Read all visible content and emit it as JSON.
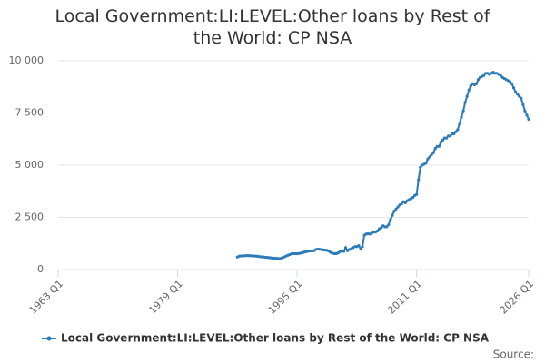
{
  "chart_data": {
    "type": "line",
    "title": "Local Government:LI:LEVEL:Other loans by Rest of the World: CP NSA",
    "x": [
      "1987 Q1",
      "1987 Q2",
      "1987 Q3",
      "1987 Q4",
      "1988 Q1",
      "1988 Q2",
      "1988 Q3",
      "1988 Q4",
      "1989 Q1",
      "1989 Q2",
      "1989 Q3",
      "1989 Q4",
      "1990 Q1",
      "1990 Q2",
      "1990 Q3",
      "1990 Q4",
      "1991 Q1",
      "1991 Q2",
      "1991 Q3",
      "1991 Q4",
      "1992 Q1",
      "1992 Q2",
      "1992 Q3",
      "1992 Q4",
      "1993 Q1",
      "1993 Q2",
      "1993 Q3",
      "1993 Q4",
      "1994 Q1",
      "1994 Q2",
      "1994 Q3",
      "1994 Q4",
      "1995 Q1",
      "1995 Q2",
      "1995 Q3",
      "1995 Q4",
      "1996 Q1",
      "1996 Q2",
      "1996 Q3",
      "1996 Q4",
      "1997 Q1",
      "1997 Q2",
      "1997 Q3",
      "1997 Q4",
      "1998 Q1",
      "1998 Q2",
      "1998 Q3",
      "1998 Q4",
      "1999 Q1",
      "1999 Q2",
      "1999 Q3",
      "1999 Q4",
      "2000 Q1",
      "2000 Q2",
      "2000 Q3",
      "2000 Q4",
      "2001 Q1",
      "2001 Q2",
      "2001 Q3",
      "2001 Q4",
      "2002 Q1",
      "2002 Q2",
      "2002 Q3",
      "2002 Q4",
      "2003 Q1",
      "2003 Q2",
      "2003 Q3",
      "2003 Q4",
      "2004 Q1",
      "2004 Q2",
      "2004 Q3",
      "2004 Q4",
      "2005 Q1",
      "2005 Q2",
      "2005 Q3",
      "2005 Q4",
      "2006 Q1",
      "2006 Q2",
      "2006 Q3",
      "2006 Q4",
      "2007 Q1",
      "2007 Q2",
      "2007 Q3",
      "2007 Q4",
      "2008 Q1",
      "2008 Q2",
      "2008 Q3",
      "2008 Q4",
      "2009 Q1",
      "2009 Q2",
      "2009 Q3",
      "2009 Q4",
      "2010 Q1",
      "2010 Q2",
      "2010 Q3",
      "2010 Q4",
      "2011 Q1",
      "2011 Q2",
      "2011 Q3",
      "2011 Q4",
      "2012 Q1",
      "2012 Q2",
      "2012 Q3",
      "2012 Q4",
      "2013 Q1",
      "2013 Q2",
      "2013 Q3",
      "2013 Q4",
      "2014 Q1",
      "2014 Q2",
      "2014 Q3",
      "2014 Q4",
      "2015 Q1",
      "2015 Q2",
      "2015 Q3",
      "2015 Q4",
      "2016 Q1",
      "2016 Q2",
      "2016 Q3",
      "2016 Q4",
      "2017 Q1",
      "2017 Q2",
      "2017 Q3",
      "2017 Q4",
      "2018 Q1",
      "2018 Q2",
      "2018 Q3",
      "2018 Q4",
      "2019 Q1",
      "2019 Q2",
      "2019 Q3",
      "2019 Q4",
      "2020 Q1",
      "2020 Q2",
      "2020 Q3",
      "2020 Q4",
      "2021 Q1",
      "2021 Q2",
      "2021 Q3",
      "2021 Q4",
      "2022 Q1",
      "2022 Q2",
      "2022 Q3",
      "2022 Q4",
      "2023 Q1",
      "2023 Q2",
      "2023 Q3",
      "2023 Q4",
      "2024 Q1",
      "2024 Q2",
      "2024 Q3",
      "2024 Q4",
      "2025 Q1",
      "2025 Q2",
      "2025 Q3",
      "2025 Q4",
      "2026 Q1"
    ],
    "series": [
      {
        "name": "Local Government:LI:LEVEL:Other loans by Rest of the World: CP NSA",
        "color": "#2b7bb9",
        "values": [
          600,
          640,
          650,
          660,
          660,
          670,
          670,
          660,
          660,
          650,
          640,
          630,
          620,
          610,
          600,
          590,
          580,
          570,
          560,
          550,
          540,
          540,
          530,
          530,
          560,
          600,
          640,
          680,
          720,
          750,
          760,
          760,
          760,
          770,
          790,
          810,
          840,
          860,
          880,
          890,
          890,
          900,
          960,
          980,
          970,
          960,
          940,
          930,
          920,
          880,
          820,
          780,
          760,
          760,
          800,
          860,
          900,
          870,
          1050,
          900,
          960,
          1000,
          1050,
          1100,
          1100,
          1150,
          1000,
          1100,
          1650,
          1700,
          1720,
          1700,
          1750,
          1800,
          1800,
          1850,
          1950,
          2000,
          2100,
          2050,
          2050,
          2150,
          2400,
          2600,
          2800,
          2900,
          3000,
          3100,
          3150,
          3250,
          3200,
          3300,
          3350,
          3400,
          3450,
          3550,
          3600,
          4300,
          4900,
          5000,
          5050,
          5100,
          5300,
          5400,
          5500,
          5600,
          5800,
          5900,
          5900,
          6100,
          6200,
          6300,
          6300,
          6400,
          6400,
          6500,
          6500,
          6600,
          6700,
          7000,
          7300,
          7600,
          8000,
          8300,
          8600,
          8800,
          8900,
          8850,
          8900,
          9100,
          9200,
          9250,
          9300,
          9400,
          9400,
          9350,
          9400,
          9450,
          9400,
          9400,
          9350,
          9300,
          9200,
          9150,
          9100,
          9050,
          9000,
          8900,
          8700,
          8500,
          8400,
          8300,
          8200,
          7900,
          7600,
          7400,
          7200
        ]
      }
    ],
    "xlim": [
      "1963 Q1",
      "2026 Q1"
    ],
    "xticks": [
      "1963 Q1",
      "1979 Q1",
      "1995 Q1",
      "2011 Q1",
      "2026 Q1"
    ],
    "ylim": [
      0,
      10000
    ],
    "yticks": [
      0,
      {
        "value": 2500,
        "label": "2 500"
      },
      {
        "value": 5000,
        "label": "5 000"
      },
      {
        "value": 7500,
        "label": "7 500"
      },
      {
        "value": 10000,
        "label": "10 000"
      }
    ],
    "grid": true,
    "source": "Source:"
  }
}
